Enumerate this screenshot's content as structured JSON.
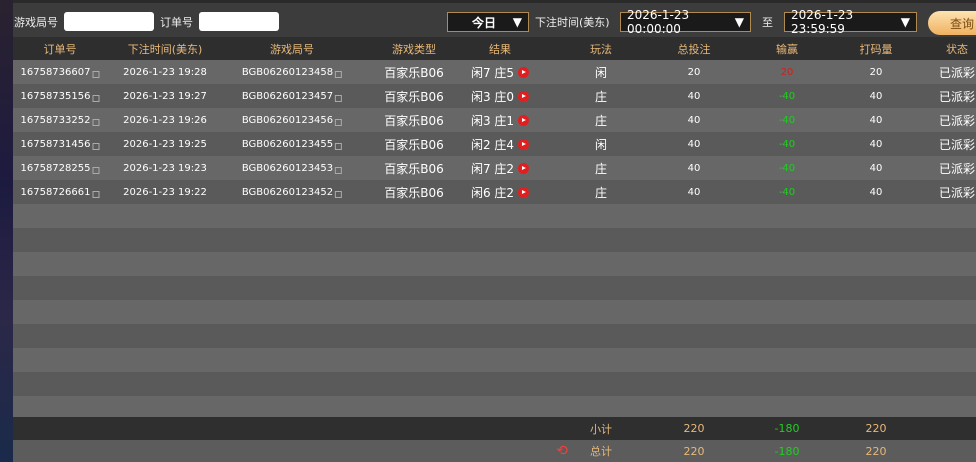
{
  "filters": {
    "round_label": "游戏局号",
    "round_value": "",
    "order_label": "订单号",
    "order_value": "",
    "period": "今日",
    "time_label": "下注时间(美东)",
    "start": "2026-1-23 00:00:00",
    "to_label": "至",
    "end": "2026-1-23 23:59:59",
    "query_label": "查询"
  },
  "columns": [
    "订单号",
    "下注时间(美东)",
    "游戏局号",
    "游戏类型",
    "结果",
    "玩法",
    "总投注",
    "输赢",
    "打码量",
    "状态"
  ],
  "rows": [
    [
      "16758736607",
      "2026-1-23 19:28",
      "BGB06260123458",
      "百家乐B06",
      "闲7 庄5",
      "闲",
      "20",
      "20",
      "20",
      "已派彩"
    ],
    [
      "16758735156",
      "2026-1-23 19:27",
      "BGB06260123457",
      "百家乐B06",
      "闲3 庄0",
      "庄",
      "40",
      "-40",
      "40",
      "已派彩"
    ],
    [
      "16758733252",
      "2026-1-23 19:26",
      "BGB06260123456",
      "百家乐B06",
      "闲3 庄1",
      "庄",
      "40",
      "-40",
      "40",
      "已派彩"
    ],
    [
      "16758731456",
      "2026-1-23 19:25",
      "BGB06260123455",
      "百家乐B06",
      "闲2 庄4",
      "闲",
      "40",
      "-40",
      "40",
      "已派彩"
    ],
    [
      "16758728255",
      "2026-1-23 19:23",
      "BGB06260123453",
      "百家乐B06",
      "闲7 庄2",
      "庄",
      "40",
      "-40",
      "40",
      "已派彩"
    ],
    [
      "16758726661",
      "2026-1-23 19:22",
      "BGB06260123452",
      "百家乐B06",
      "闲6 庄2",
      "庄",
      "40",
      "-40",
      "40",
      "已派彩"
    ]
  ],
  "subtotal": {
    "label": "小计",
    "bet": "220",
    "winloss": "-180",
    "valid": "220"
  },
  "total": {
    "label": "总计",
    "bet": "220",
    "winloss": "-180",
    "valid": "220"
  },
  "colors": {
    "win": "#d02020",
    "loss": "#22cc22",
    "header_text": "#e8b878",
    "accent": "#f0b060"
  }
}
